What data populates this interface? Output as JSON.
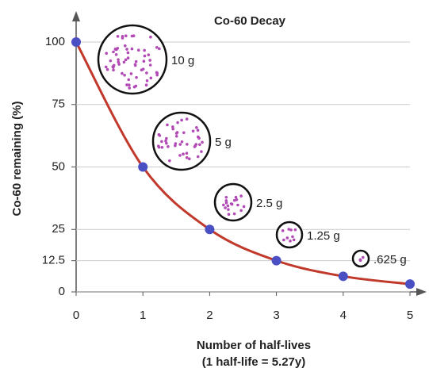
{
  "chart_data": {
    "type": "line",
    "title": "Co-60 Decay",
    "x_label": [
      "Number of half-lives",
      "(1 half-life = 5.27y)"
    ],
    "y_label": "Co-60 remaining (%)",
    "x": [
      0,
      1,
      2,
      3,
      4,
      5
    ],
    "series": [
      {
        "values": [
          100,
          50,
          25,
          12.5,
          6.25,
          3.125
        ],
        "color": "#c0392b",
        "marker_color": "#4a4fc4"
      }
    ],
    "xlim": [
      0,
      5
    ],
    "xticks": [
      0,
      1,
      2,
      3,
      4,
      5
    ],
    "ylim": [
      0,
      100
    ],
    "yticks": [
      0,
      12.5,
      25,
      50,
      75,
      100
    ],
    "grid": true,
    "annotations": [
      "10 g",
      "5 g",
      "2.5 g",
      "1.25 g",
      ".625 g"
    ]
  }
}
